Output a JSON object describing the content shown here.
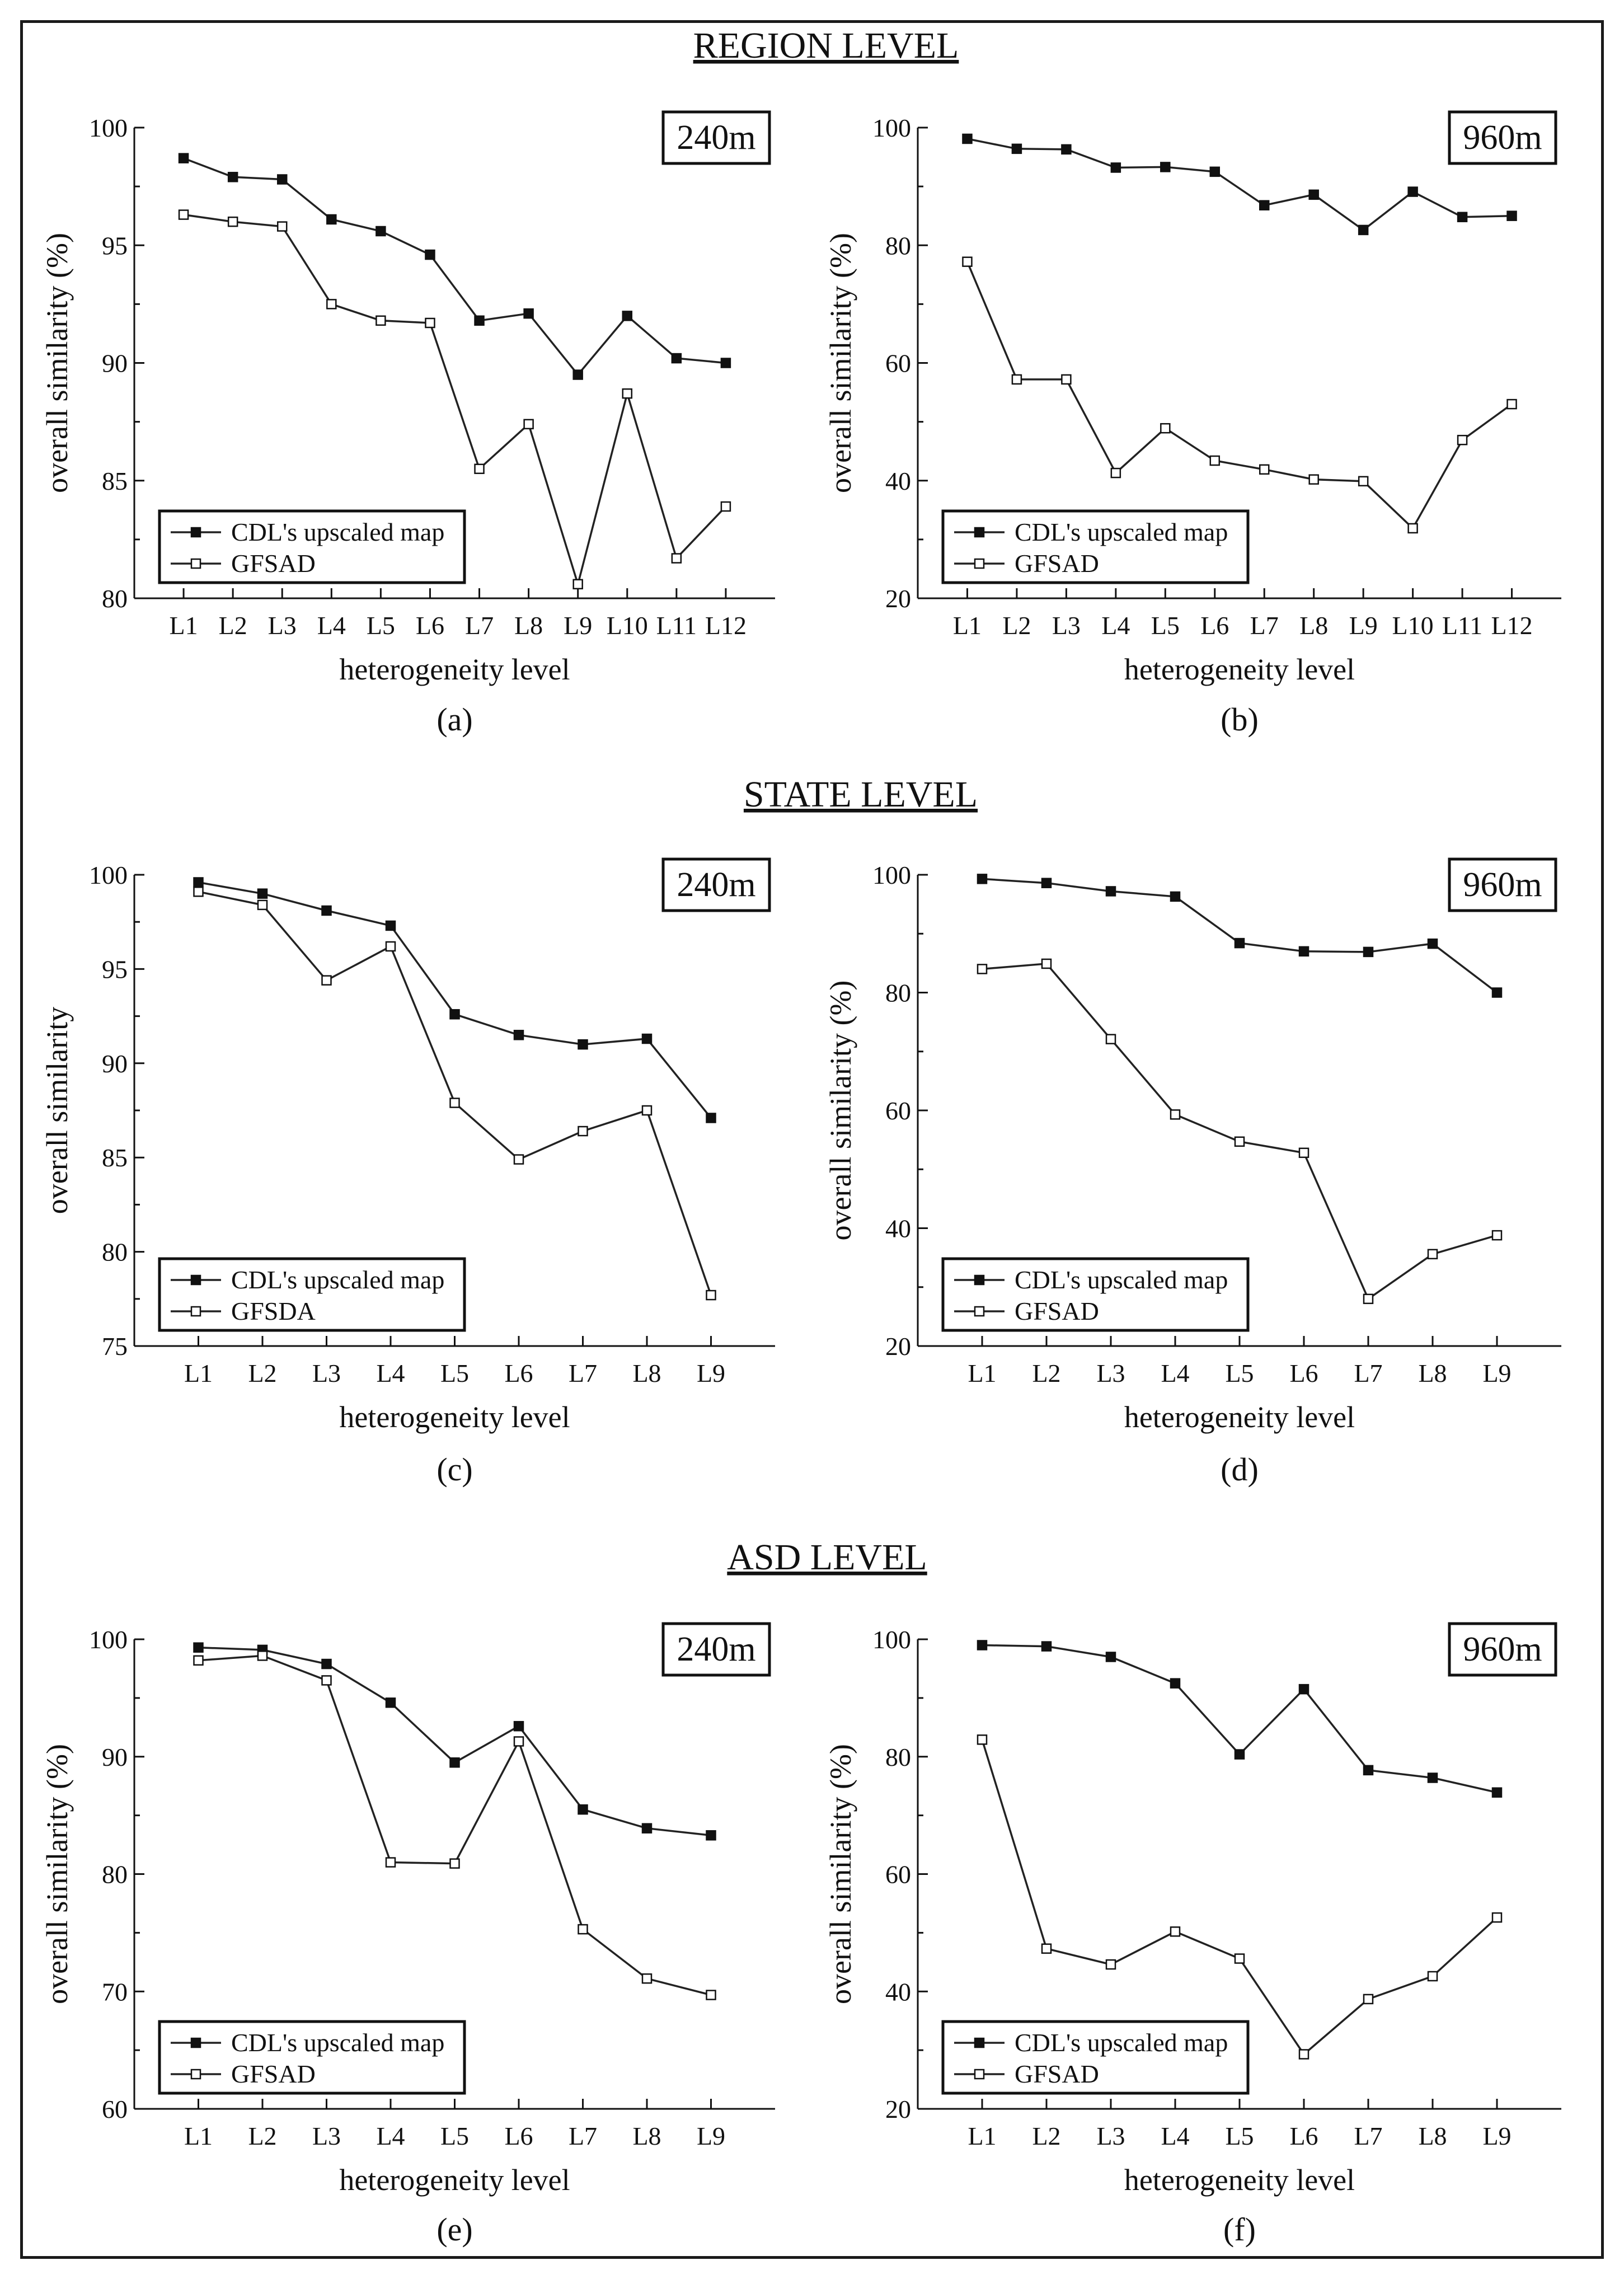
{
  "sections": {
    "region": "REGION  LEVEL",
    "state": "STATE LEVEL",
    "asd": "ASD LEVEL"
  },
  "chart_data": [
    {
      "id": "a",
      "type": "line",
      "caption": "(a)",
      "resolution": "240m",
      "xlabel": "heterogeneity level",
      "ylabel": "overall similarity (%)",
      "categories": [
        "L1",
        "L2",
        "L3",
        "L4",
        "L5",
        "L6",
        "L7",
        "L8",
        "L9",
        "L10",
        "L11",
        "L12"
      ],
      "ylim": [
        80,
        100
      ],
      "yticks": [
        80,
        85,
        90,
        95,
        100
      ],
      "legend_position": "bottom-left",
      "series": [
        {
          "name": "CDL's upscaled map",
          "marker": "filled-square",
          "values": [
            98.7,
            97.9,
            97.8,
            96.1,
            95.6,
            94.6,
            91.8,
            92.1,
            89.5,
            92.0,
            90.2,
            90.0
          ]
        },
        {
          "name": "GFSAD",
          "marker": "open-square",
          "values": [
            96.3,
            96.0,
            95.8,
            92.5,
            91.8,
            91.7,
            85.5,
            87.4,
            80.6,
            88.7,
            81.7,
            83.9
          ]
        }
      ]
    },
    {
      "id": "b",
      "type": "line",
      "caption": "(b)",
      "resolution": "960m",
      "xlabel": "heterogeneity level",
      "ylabel": "overall similarity (%)",
      "categories": [
        "L1",
        "L2",
        "L3",
        "L4",
        "L5",
        "L6",
        "L7",
        "L8",
        "L9",
        "L10",
        "L11",
        "L12"
      ],
      "ylim": [
        20,
        100
      ],
      "yticks": [
        20,
        40,
        60,
        80,
        100
      ],
      "legend_position": "bottom-left",
      "series": [
        {
          "name": "CDL's upscaled map",
          "marker": "filled-square",
          "values": [
            98.1,
            96.4,
            96.3,
            93.2,
            93.3,
            92.5,
            86.8,
            88.6,
            82.6,
            89.1,
            84.8,
            85.0
          ]
        },
        {
          "name": "GFSAD",
          "marker": "open-square",
          "values": [
            77.2,
            57.2,
            57.2,
            41.3,
            48.9,
            43.4,
            41.9,
            40.2,
            39.9,
            31.9,
            46.9,
            53.0
          ]
        }
      ]
    },
    {
      "id": "c",
      "type": "line",
      "caption": "(c)",
      "resolution": "240m",
      "xlabel": "heterogeneity level",
      "ylabel": "overall similarity",
      "categories": [
        "L1",
        "L2",
        "L3",
        "L4",
        "L5",
        "L6",
        "L7",
        "L8",
        "L9"
      ],
      "ylim": [
        75,
        100
      ],
      "yticks": [
        75,
        80,
        85,
        90,
        95,
        100
      ],
      "legend_position": "bottom-left",
      "series": [
        {
          "name": "CDL's upscaled map",
          "marker": "filled-square",
          "values": [
            99.6,
            99.0,
            98.1,
            97.3,
            92.6,
            91.5,
            91.0,
            91.3,
            87.1
          ]
        },
        {
          "name": "GFSDA",
          "marker": "open-square",
          "values": [
            99.1,
            98.4,
            94.4,
            96.2,
            87.9,
            84.9,
            86.4,
            87.5,
            77.7
          ]
        }
      ]
    },
    {
      "id": "d",
      "type": "line",
      "caption": "(d)",
      "resolution": "960m",
      "xlabel": "heterogeneity level",
      "ylabel": "overall similarity (%)",
      "categories": [
        "L1",
        "L2",
        "L3",
        "L4",
        "L5",
        "L6",
        "L7",
        "L8",
        "L9"
      ],
      "ylim": [
        20,
        100
      ],
      "yticks": [
        20,
        40,
        60,
        80,
        100
      ],
      "legend_position": "bottom-left",
      "series": [
        {
          "name": "CDL's upscaled map",
          "marker": "filled-square",
          "values": [
            99.3,
            98.6,
            97.2,
            96.3,
            88.4,
            87.0,
            86.9,
            88.3,
            80.0
          ]
        },
        {
          "name": "GFSAD",
          "marker": "open-square",
          "values": [
            84.0,
            84.9,
            72.1,
            59.3,
            54.7,
            52.8,
            28.0,
            35.6,
            38.8
          ]
        }
      ]
    },
    {
      "id": "e",
      "type": "line",
      "caption": "(e)",
      "resolution": "240m",
      "xlabel": "heterogeneity level",
      "ylabel": "overall similarity (%)",
      "categories": [
        "L1",
        "L2",
        "L3",
        "L4",
        "L5",
        "L6",
        "L7",
        "L8",
        "L9"
      ],
      "ylim": [
        60,
        100
      ],
      "yticks": [
        60,
        70,
        80,
        90,
        100
      ],
      "legend_position": "bottom-left",
      "series": [
        {
          "name": "CDL's upscaled map",
          "marker": "filled-square",
          "values": [
            99.3,
            99.1,
            97.9,
            94.6,
            89.5,
            92.6,
            85.5,
            83.9,
            83.3
          ]
        },
        {
          "name": "GFSAD",
          "marker": "open-square",
          "values": [
            98.2,
            98.6,
            96.5,
            81.0,
            80.9,
            91.3,
            75.3,
            71.1,
            69.7
          ]
        }
      ]
    },
    {
      "id": "f",
      "type": "line",
      "caption": "(f)",
      "resolution": "960m",
      "xlabel": "heterogeneity level",
      "ylabel": "overall similarity (%)",
      "categories": [
        "L1",
        "L2",
        "L3",
        "L4",
        "L5",
        "L6",
        "L7",
        "L8",
        "L9"
      ],
      "ylim": [
        20,
        100
      ],
      "yticks": [
        20,
        40,
        60,
        80,
        100
      ],
      "legend_position": "bottom-left",
      "series": [
        {
          "name": "CDL's upscaled map",
          "marker": "filled-square",
          "values": [
            99.0,
            98.8,
            97.0,
            92.5,
            80.4,
            91.5,
            77.7,
            76.4,
            73.9
          ]
        },
        {
          "name": "GFSAD",
          "marker": "open-square",
          "values": [
            82.9,
            47.3,
            44.6,
            50.2,
            45.6,
            29.3,
            38.7,
            42.6,
            52.6
          ]
        }
      ]
    }
  ]
}
